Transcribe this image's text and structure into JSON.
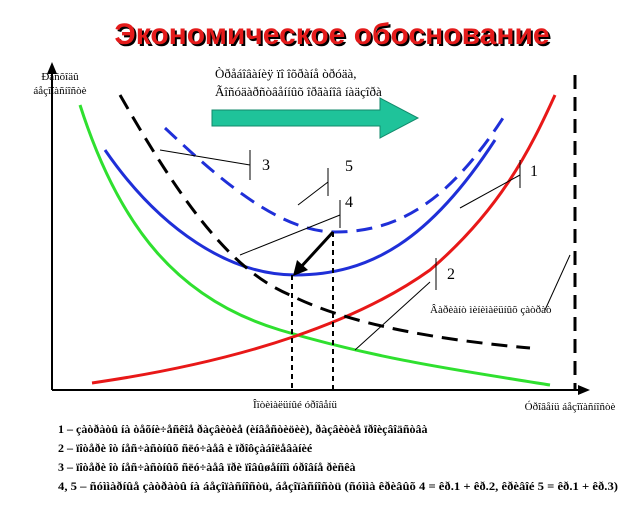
{
  "title": "Экономическое обоснование",
  "y_axis_label": [
    "Ðàñõîäû",
    "áåçîïàñíîñòè"
  ],
  "x_axis_label": "Óðîâåíü áåçîïàñíîñòè",
  "optimum_label": "Îïòèìàëüíûé óðîâåíü",
  "requirements": [
    "Òðåáîâàíèÿ ïî îõðàíå òðóäà,",
    "Ãîñóäàðñòâåííûõ îðãàíîâ íàäçîðà"
  ],
  "variant_label": "Âàðèàíò ìèíèìàëüíûõ çàòðàò",
  "curve_labels": [
    "1",
    "2",
    "3",
    "4",
    "5"
  ],
  "legend": [
    "1 – çàòðàòû íà òåõíè÷åñêîå ðàçâèòèå (èíâåñòèöèè), ðàçâèòèå ïðîèçâîäñòâà",
    "2 – ïîòåðè îò íåñ÷àñòíûõ ñëó÷àåâ è ïðîôçàáîëåâàíèé",
    "3 – ïîòåðè îò íåñ÷àñòíûõ ñëó÷àåâ ïðè ïîâûøåííîì óðîâíå ðèñêà",
    "4, 5 – ñóììàðíûå çàòðàòû íà áåçîïàñíîñòü, áåçîïàñíîñòü (ñóììà êðèâûõ 4 = êð.1 + êð.2, êðèâîé 5 = êð.1 + êð.3)"
  ]
}
